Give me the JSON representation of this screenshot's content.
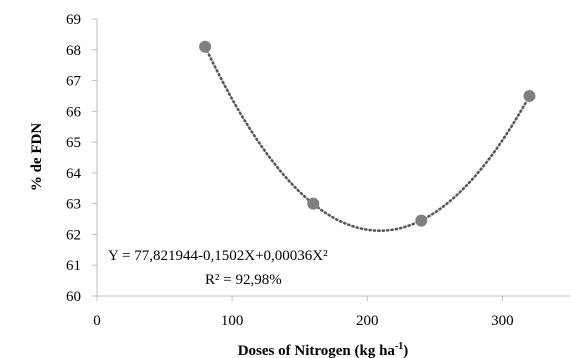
{
  "chart_data": {
    "type": "scatter",
    "xlabel": "Doses of Nitrogen (kg ha",
    "xlabel_sup": "-1",
    "xlabel_end": ")",
    "ylabel": "% de FDN",
    "xlim": [
      0,
      350
    ],
    "ylim": [
      60,
      69
    ],
    "x_ticks": [
      0,
      100,
      200,
      300
    ],
    "y_ticks": [
      60,
      61,
      62,
      63,
      64,
      65,
      66,
      67,
      68,
      69
    ],
    "points": [
      {
        "x": 80,
        "y": 68.1
      },
      {
        "x": 160,
        "y": 63.0
      },
      {
        "x": 240,
        "y": 62.45
      },
      {
        "x": 320,
        "y": 66.5
      }
    ],
    "trendline": {
      "type": "polynomial",
      "order": 2,
      "style": "dotted",
      "x_range": [
        80,
        320
      ]
    },
    "annotations": {
      "equation": "Y = 77,821944-0,1502X+0,00036X²",
      "r_squared": "R² = 92,98%"
    },
    "grid": false,
    "colors": {
      "marker": "#7f7f7f",
      "trendline": "#595959",
      "axis": "#bfbfbf"
    }
  }
}
